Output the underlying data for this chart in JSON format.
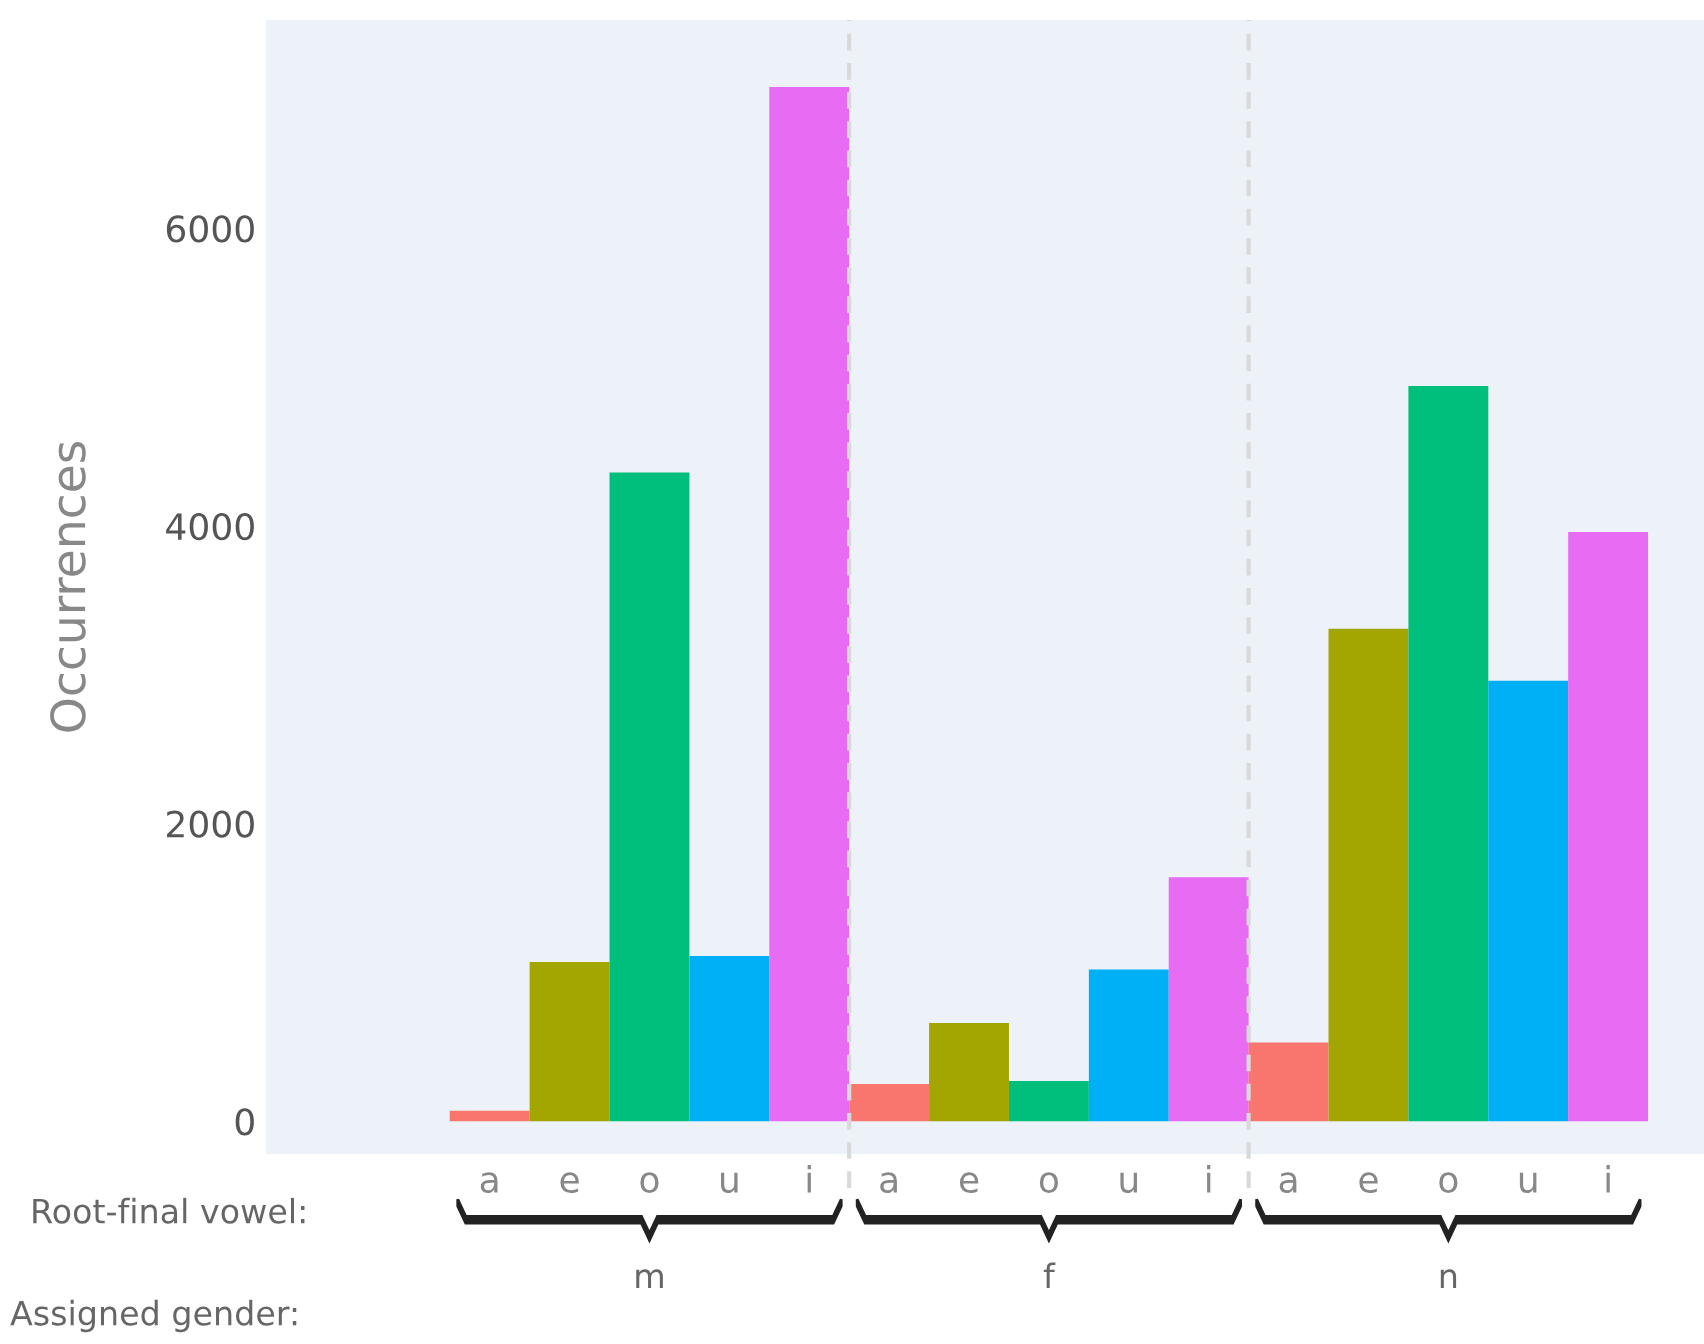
{
  "chart_data": {
    "type": "bar",
    "ylabel": "Occurrences",
    "categories": [
      "a",
      "e",
      "o",
      "u",
      "i",
      "a",
      "e",
      "o",
      "u",
      "i",
      "a",
      "e",
      "o",
      "u",
      "i"
    ],
    "values": [
      70,
      1070,
      4360,
      1110,
      6950,
      250,
      660,
      270,
      1020,
      1640,
      530,
      3310,
      4940,
      2960,
      3960
    ],
    "colors": [
      "#f8766d",
      "#a3a500",
      "#00bf7d",
      "#00b0f6",
      "#e76bf3",
      "#f8766d",
      "#a3a500",
      "#00bf7d",
      "#00b0f6",
      "#e76bf3",
      "#f8766d",
      "#a3a500",
      "#00bf7d",
      "#00b0f6",
      "#e76bf3"
    ],
    "ylim": [
      -220,
      7400
    ],
    "yticks": [
      0,
      2000,
      4000,
      6000
    ],
    "grid": false,
    "legend": false,
    "annotations": [
      "Root-final vowel:",
      "Assigned gender:",
      "m",
      "f",
      "n"
    ]
  }
}
